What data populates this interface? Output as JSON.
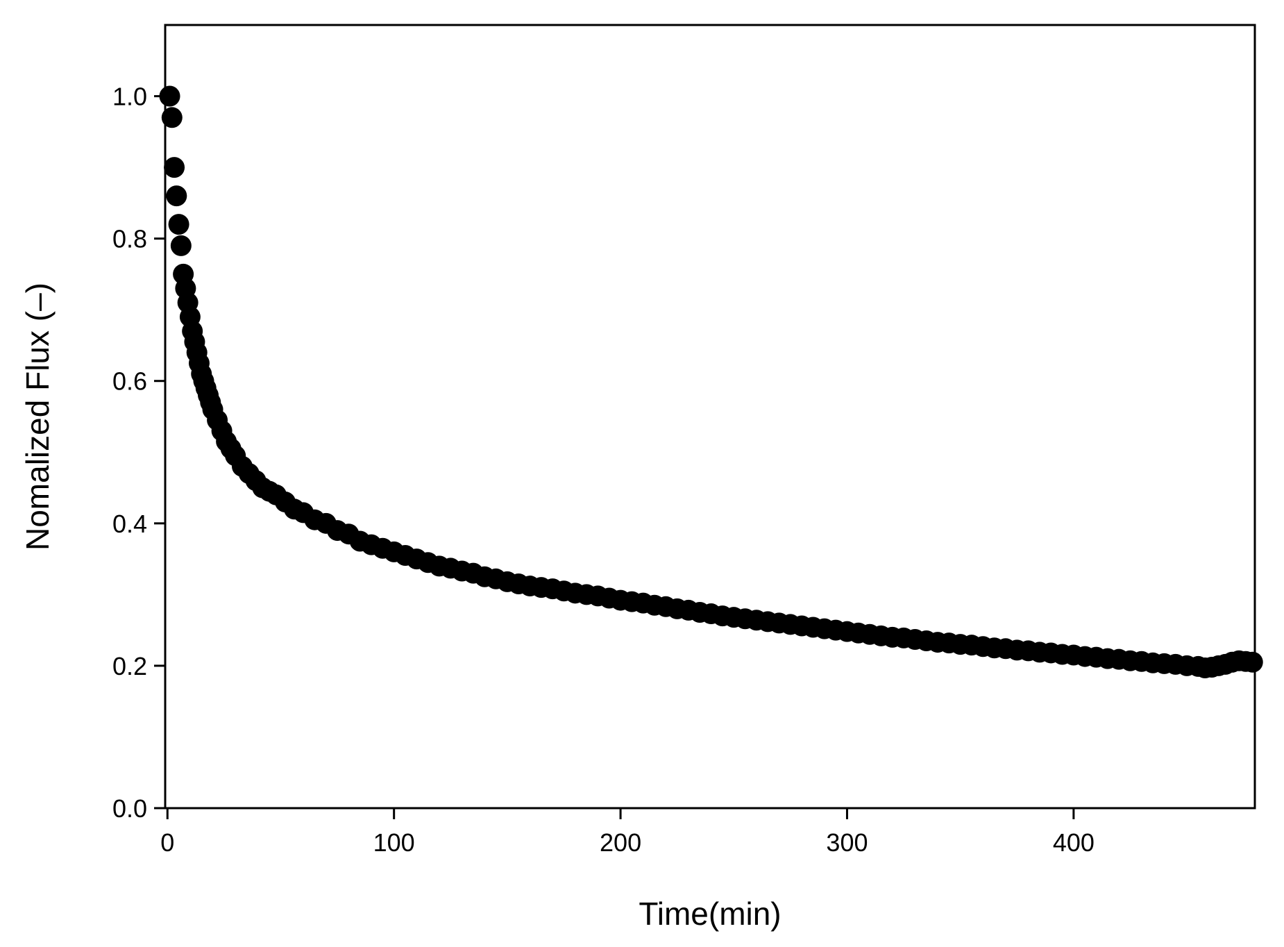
{
  "chart_data": {
    "type": "scatter",
    "title": "",
    "xlabel": "Time(min)",
    "ylabel": "Nomalized Flux (–)",
    "xlim": [
      -1,
      480
    ],
    "ylim": [
      0.0,
      1.1
    ],
    "x_ticks": [
      0,
      100,
      200,
      300,
      400
    ],
    "x_tick_labels": [
      "0",
      "100",
      "200",
      "300",
      "400"
    ],
    "y_ticks": [
      0.0,
      0.2,
      0.4,
      0.6,
      0.8,
      1.0
    ],
    "y_tick_labels": [
      "0.0",
      "0.2",
      "0.4",
      "0.6",
      "0.8",
      "1.0"
    ],
    "grid": false,
    "legend": "none",
    "marker_color": "#000000",
    "series": [
      {
        "x": [
          1,
          2,
          3,
          4,
          5,
          6,
          7,
          8,
          9,
          10,
          11,
          12,
          13,
          14,
          15,
          16,
          17,
          18,
          19,
          20,
          22,
          24,
          26,
          28,
          30,
          33,
          36,
          39,
          42,
          45,
          48,
          52,
          56,
          60,
          65,
          70,
          75,
          80,
          85,
          90,
          95,
          100,
          105,
          110,
          115,
          120,
          125,
          130,
          135,
          140,
          145,
          150,
          155,
          160,
          165,
          170,
          175,
          180,
          185,
          190,
          195,
          200,
          205,
          210,
          215,
          220,
          225,
          230,
          235,
          240,
          245,
          250,
          255,
          260,
          265,
          270,
          275,
          280,
          285,
          290,
          295,
          300,
          305,
          310,
          315,
          320,
          325,
          330,
          335,
          340,
          345,
          350,
          355,
          360,
          365,
          370,
          375,
          380,
          385,
          390,
          395,
          400,
          405,
          410,
          415,
          420,
          425,
          430,
          435,
          440,
          445,
          450,
          455,
          458,
          461,
          464,
          467,
          470,
          473,
          476,
          479
        ],
        "y": [
          1.0,
          0.97,
          0.9,
          0.86,
          0.82,
          0.79,
          0.75,
          0.73,
          0.71,
          0.69,
          0.67,
          0.655,
          0.64,
          0.625,
          0.61,
          0.6,
          0.59,
          0.58,
          0.57,
          0.56,
          0.545,
          0.53,
          0.515,
          0.505,
          0.495,
          0.48,
          0.47,
          0.46,
          0.45,
          0.445,
          0.44,
          0.43,
          0.42,
          0.415,
          0.405,
          0.4,
          0.39,
          0.385,
          0.375,
          0.37,
          0.365,
          0.36,
          0.355,
          0.35,
          0.345,
          0.34,
          0.337,
          0.333,
          0.33,
          0.325,
          0.322,
          0.318,
          0.315,
          0.312,
          0.31,
          0.308,
          0.305,
          0.302,
          0.3,
          0.298,
          0.295,
          0.292,
          0.29,
          0.288,
          0.285,
          0.283,
          0.28,
          0.278,
          0.275,
          0.273,
          0.27,
          0.268,
          0.266,
          0.264,
          0.262,
          0.26,
          0.258,
          0.256,
          0.254,
          0.252,
          0.25,
          0.248,
          0.246,
          0.244,
          0.242,
          0.24,
          0.239,
          0.237,
          0.235,
          0.233,
          0.232,
          0.23,
          0.229,
          0.227,
          0.225,
          0.224,
          0.222,
          0.221,
          0.219,
          0.218,
          0.216,
          0.215,
          0.213,
          0.212,
          0.21,
          0.209,
          0.207,
          0.206,
          0.204,
          0.203,
          0.202,
          0.2,
          0.199,
          0.197,
          0.198,
          0.2,
          0.202,
          0.205,
          0.207,
          0.206,
          0.205
        ]
      }
    ]
  }
}
